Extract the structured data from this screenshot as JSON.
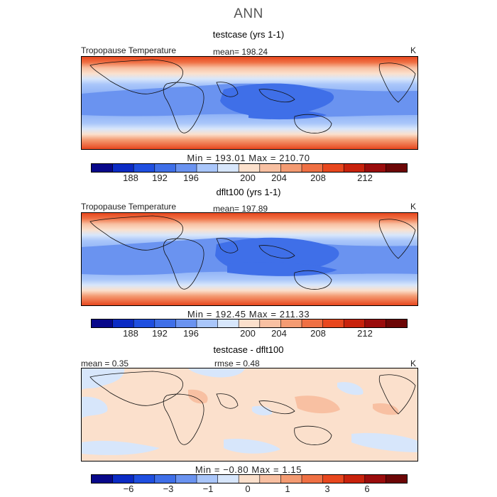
{
  "figure": {
    "title": "ANN"
  },
  "panels": [
    {
      "title": "testcase (yrs 1-1)",
      "variable": "Tropopause Temperature",
      "mean": "mean= 198.24",
      "units": "K",
      "minmax": "Min = 193.01  Max = 210.70",
      "colorbar_ticks": [
        "188",
        "192",
        "196",
        "200",
        "204",
        "208",
        "212"
      ]
    },
    {
      "title": "dflt100 (yrs 1-1)",
      "variable": "Tropopause Temperature",
      "mean": "mean= 197.89",
      "units": "K",
      "minmax": "Min = 192.45  Max = 211.33",
      "colorbar_ticks": [
        "188",
        "192",
        "196",
        "200",
        "204",
        "208",
        "212"
      ]
    },
    {
      "title": "testcase - dflt100",
      "mean": "mean =    0.35",
      "rmse": "rmse =    0.48",
      "units": "K",
      "minmax": "Min =   −0.80  Max =    1.15",
      "colorbar_ticks": [
        "−6",
        "−3",
        "−1",
        "0",
        "1",
        "3",
        "6"
      ]
    }
  ],
  "colorbar_colors": [
    "#08088a",
    "#0b2bc4",
    "#1f4fe0",
    "#3f6fe8",
    "#6a93f0",
    "#a9c6fa",
    "#d7e6fb",
    "#fbe0cc",
    "#f8c0a2",
    "#f49b72",
    "#ef7044",
    "#e8471e",
    "#c8220c",
    "#9a0c0c",
    "#6c0606"
  ]
}
